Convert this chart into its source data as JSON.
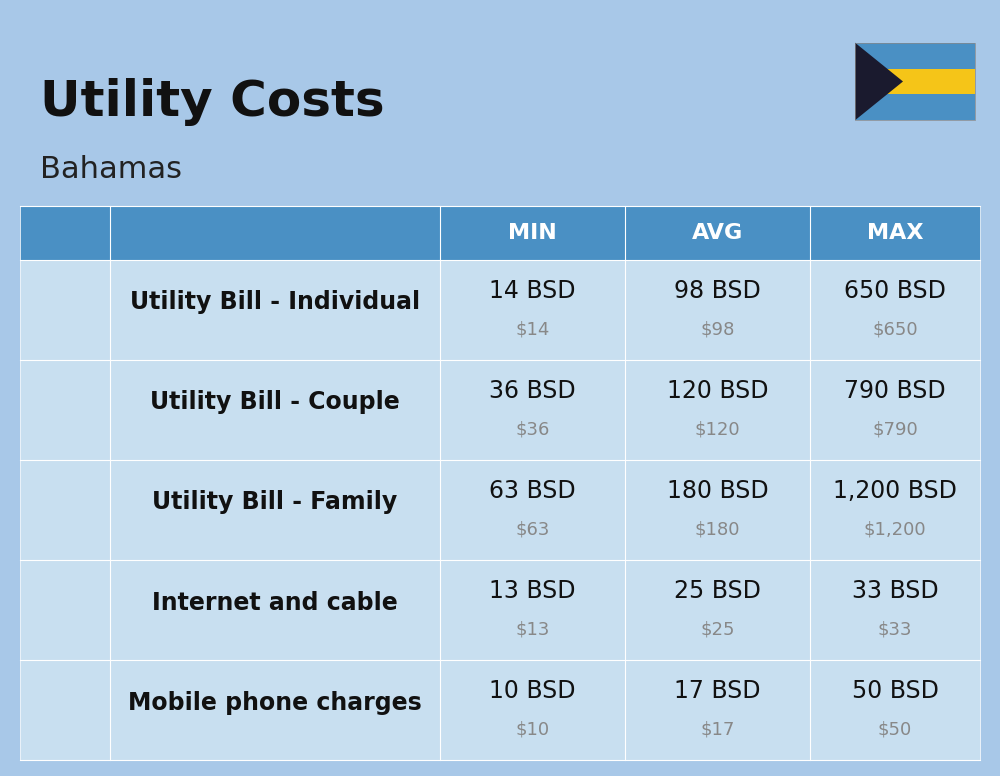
{
  "title": "Utility Costs",
  "subtitle": "Bahamas",
  "background_color": "#a8c8e8",
  "header_bg_color": "#4a90c4",
  "header_text_color": "#ffffff",
  "row_bg_color_1": "#c5dff0",
  "row_bg_color_2": "#b8d4e8",
  "col_headers": [
    "MIN",
    "AVG",
    "MAX"
  ],
  "rows": [
    {
      "label": "Utility Bill - Individual",
      "min_bsd": "14 BSD",
      "min_usd": "$14",
      "avg_bsd": "98 BSD",
      "avg_usd": "$98",
      "max_bsd": "650 BSD",
      "max_usd": "$650"
    },
    {
      "label": "Utility Bill - Couple",
      "min_bsd": "36 BSD",
      "min_usd": "$36",
      "avg_bsd": "120 BSD",
      "avg_usd": "$120",
      "max_bsd": "790 BSD",
      "max_usd": "$790"
    },
    {
      "label": "Utility Bill - Family",
      "min_bsd": "63 BSD",
      "min_usd": "$63",
      "avg_bsd": "180 BSD",
      "avg_usd": "$180",
      "max_bsd": "1,200 BSD",
      "max_usd": "$1,200"
    },
    {
      "label": "Internet and cable",
      "min_bsd": "13 BSD",
      "min_usd": "$13",
      "avg_bsd": "25 BSD",
      "avg_usd": "$25",
      "max_bsd": "33 BSD",
      "max_usd": "$33"
    },
    {
      "label": "Mobile phone charges",
      "min_bsd": "10 BSD",
      "min_usd": "$10",
      "avg_bsd": "17 BSD",
      "avg_usd": "$17",
      "max_bsd": "50 BSD",
      "max_usd": "$50"
    }
  ],
  "title_fontsize": 36,
  "subtitle_fontsize": 22,
  "header_fontsize": 16,
  "label_fontsize": 17,
  "value_fontsize": 17,
  "usd_fontsize": 13,
  "usd_color": "#888888"
}
